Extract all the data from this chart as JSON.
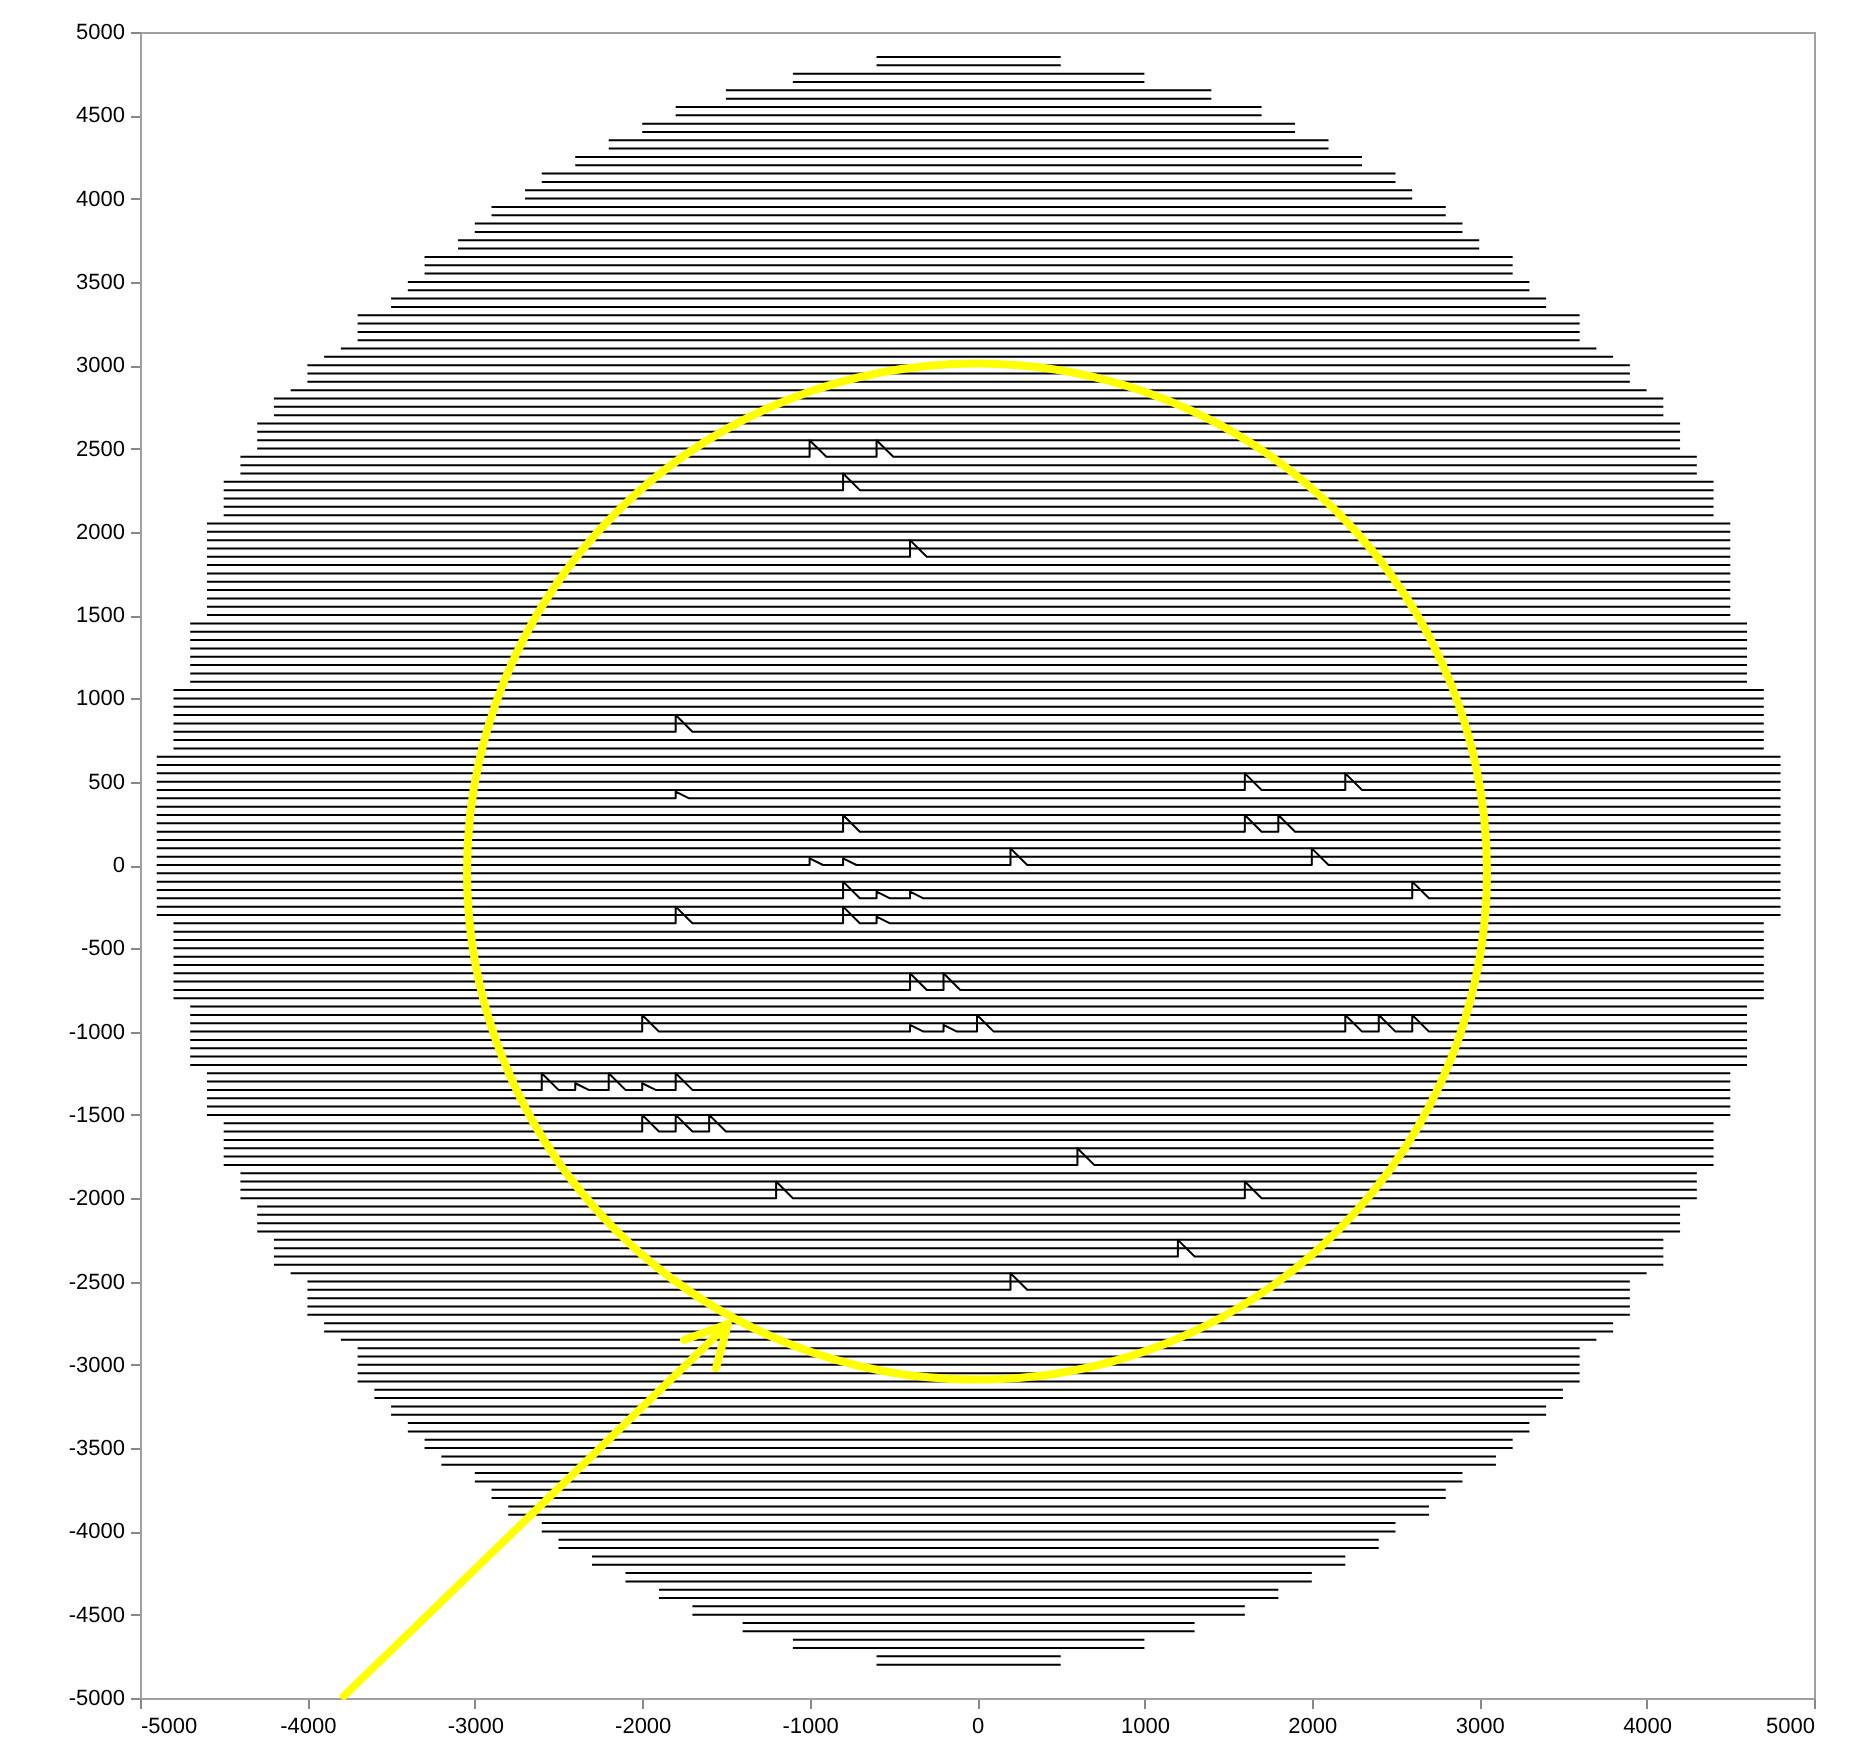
{
  "chart_data": {
    "type": "line",
    "xlim": [
      -5000,
      5000
    ],
    "ylim": [
      -5000,
      5000
    ],
    "xticks": [
      -5000,
      -4000,
      -3000,
      -2000,
      -1000,
      0,
      1000,
      2000,
      3000,
      4000,
      5000
    ],
    "yticks": [
      -5000,
      -4500,
      -4000,
      -3500,
      -3000,
      -2500,
      -2000,
      -1500,
      -1000,
      -500,
      0,
      500,
      1000,
      1500,
      2000,
      2500,
      3000,
      3500,
      4000,
      4500,
      5000
    ],
    "grid": false,
    "series": [
      {
        "color": "#000000",
        "x": [
          -600,
          500
        ],
        "values": [
          4850,
          4850
        ]
      },
      {
        "color": "#000000",
        "x": [
          -600,
          500
        ],
        "values": [
          4800,
          4800
        ]
      },
      {
        "color": "#000000",
        "x": [
          -1100,
          1000
        ],
        "values": [
          4750,
          4750
        ]
      },
      {
        "color": "#000000",
        "x": [
          -1100,
          1000
        ],
        "values": [
          4700,
          4700
        ]
      },
      {
        "color": "#000000",
        "x": [
          -1500,
          1400
        ],
        "values": [
          4650,
          4650
        ]
      },
      {
        "color": "#000000",
        "x": [
          -1500,
          1400
        ],
        "values": [
          4600,
          4600
        ]
      },
      {
        "color": "#000000",
        "x": [
          -1800,
          1700
        ],
        "values": [
          4550,
          4550
        ]
      },
      {
        "color": "#000000",
        "x": [
          -1800,
          1700
        ],
        "values": [
          4500,
          4500
        ]
      },
      {
        "color": "#000000",
        "x": [
          -2000,
          1900
        ],
        "values": [
          4450,
          4450
        ]
      },
      {
        "color": "#000000",
        "x": [
          -2000,
          1900
        ],
        "values": [
          4400,
          4400
        ]
      },
      {
        "color": "#000000",
        "x": [
          -2200,
          2100
        ],
        "values": [
          4350,
          4350
        ]
      },
      {
        "color": "#000000",
        "x": [
          -2200,
          2100
        ],
        "values": [
          4300,
          4300
        ]
      },
      {
        "color": "#000000",
        "x": [
          -2400,
          2300
        ],
        "values": [
          4250,
          4250
        ]
      },
      {
        "color": "#000000",
        "x": [
          -2400,
          2300
        ],
        "values": [
          4200,
          4200
        ]
      },
      {
        "color": "#000000",
        "x": [
          -2600,
          2500
        ],
        "values": [
          4150,
          4150
        ]
      },
      {
        "color": "#000000",
        "x": [
          -2600,
          2500
        ],
        "values": [
          4100,
          4100
        ]
      },
      {
        "color": "#000000",
        "x": [
          -2700,
          2600
        ],
        "values": [
          4050,
          4050
        ]
      },
      {
        "color": "#000000",
        "x": [
          -2700,
          2600
        ],
        "values": [
          4000,
          4000
        ]
      },
      {
        "color": "#000000",
        "x": [
          -2900,
          2800
        ],
        "values": [
          3950,
          3950
        ]
      },
      {
        "color": "#000000",
        "x": [
          -2900,
          2800
        ],
        "values": [
          3900,
          3900
        ]
      },
      {
        "color": "#000000",
        "x": [
          -3000,
          2900
        ],
        "values": [
          3850,
          3850
        ]
      },
      {
        "color": "#000000",
        "x": [
          -3000,
          2900
        ],
        "values": [
          3800,
          3800
        ]
      },
      {
        "color": "#000000",
        "x": [
          -3100,
          3000
        ],
        "values": [
          3750,
          3750
        ]
      },
      {
        "color": "#000000",
        "x": [
          -3100,
          3000
        ],
        "values": [
          3700,
          3700
        ]
      },
      {
        "color": "#000000",
        "x": [
          -3300,
          3200
        ],
        "values": [
          3650,
          3650
        ]
      },
      {
        "color": "#000000",
        "x": [
          -3300,
          3200
        ],
        "values": [
          3600,
          3600
        ]
      },
      {
        "color": "#000000",
        "x": [
          -3300,
          3200
        ],
        "values": [
          3550,
          3550
        ]
      },
      {
        "color": "#000000",
        "x": [
          -3400,
          3300
        ],
        "values": [
          3500,
          3500
        ]
      },
      {
        "color": "#000000",
        "x": [
          -3400,
          3300
        ],
        "values": [
          3450,
          3450
        ]
      },
      {
        "color": "#000000",
        "x": [
          -3500,
          3400
        ],
        "values": [
          3400,
          3400
        ]
      },
      {
        "color": "#000000",
        "x": [
          -3500,
          3400
        ],
        "values": [
          3350,
          3350
        ]
      },
      {
        "color": "#000000",
        "x": [
          -3700,
          3600
        ],
        "values": [
          3300,
          3300
        ]
      },
      {
        "color": "#000000",
        "x": [
          -3700,
          3600
        ],
        "values": [
          3250,
          3250
        ]
      },
      {
        "color": "#000000",
        "x": [
          -3700,
          3600
        ],
        "values": [
          3200,
          3200
        ]
      },
      {
        "color": "#000000",
        "x": [
          -3700,
          3600
        ],
        "values": [
          3150,
          3150
        ]
      },
      {
        "color": "#000000",
        "x": [
          -3800,
          3700
        ],
        "values": [
          3100,
          3100
        ]
      },
      {
        "color": "#000000",
        "x": [
          -3900,
          3800
        ],
        "values": [
          3050,
          3050
        ]
      },
      {
        "color": "#000000",
        "x": [
          -4000,
          3900
        ],
        "values": [
          3000,
          3000
        ]
      },
      {
        "color": "#000000",
        "x": [
          -4000,
          3900
        ],
        "values": [
          2950,
          2950
        ]
      },
      {
        "color": "#000000",
        "x": [
          -4000,
          3900
        ],
        "values": [
          2900,
          2900
        ]
      },
      {
        "color": "#000000",
        "x": [
          -4100,
          4000
        ],
        "values": [
          2850,
          2850
        ]
      },
      {
        "color": "#000000",
        "x": [
          -4200,
          4100
        ],
        "values": [
          2800,
          2800
        ]
      },
      {
        "color": "#000000",
        "x": [
          -4200,
          4100
        ],
        "values": [
          2750,
          2750
        ]
      },
      {
        "color": "#000000",
        "x": [
          -4200,
          4100
        ],
        "values": [
          2700,
          2700
        ]
      },
      {
        "color": "#000000",
        "x": [
          -4300,
          4200
        ],
        "values": [
          2650,
          2650
        ]
      },
      {
        "color": "#000000",
        "x": [
          -4300,
          4200
        ],
        "values": [
          2600,
          2600
        ]
      },
      {
        "color": "#000000",
        "x": [
          -4300,
          4200
        ],
        "values": [
          2550,
          2550
        ]
      },
      {
        "color": "#000000",
        "x": [
          -4300,
          4200
        ],
        "values": [
          2500,
          2500
        ]
      },
      {
        "color": "#000000",
        "x": [
          -4400,
          -1000,
          -1000,
          -900,
          -600,
          -600,
          -500,
          4300
        ],
        "values": [
          2450,
          2450,
          2550,
          2450,
          2450,
          2550,
          2450,
          2450
        ]
      },
      {
        "color": "#000000",
        "x": [
          -4400,
          4300
        ],
        "values": [
          2400,
          2400
        ]
      },
      {
        "color": "#000000",
        "x": [
          -4400,
          4300
        ],
        "values": [
          2350,
          2350
        ]
      },
      {
        "color": "#000000",
        "x": [
          -4500,
          4400
        ],
        "values": [
          2300,
          2300
        ]
      },
      {
        "color": "#000000",
        "x": [
          -4500,
          -800,
          -800,
          -700,
          4400
        ],
        "values": [
          2250,
          2250,
          2350,
          2250,
          2250
        ]
      },
      {
        "color": "#000000",
        "x": [
          -4500,
          4400
        ],
        "values": [
          2200,
          2200
        ]
      },
      {
        "color": "#000000",
        "x": [
          -4500,
          4400
        ],
        "values": [
          2150,
          2150
        ]
      },
      {
        "color": "#000000",
        "x": [
          -4500,
          4400
        ],
        "values": [
          2100,
          2100
        ]
      },
      {
        "color": "#000000",
        "x": [
          -4600,
          4500
        ],
        "values": [
          2050,
          2050
        ]
      },
      {
        "color": "#000000",
        "x": [
          -4600,
          4500
        ],
        "values": [
          2000,
          2000
        ]
      },
      {
        "color": "#000000",
        "x": [
          -4600,
          4500
        ],
        "values": [
          1950,
          1950
        ]
      },
      {
        "color": "#000000",
        "x": [
          -4600,
          4500
        ],
        "values": [
          1900,
          1900
        ]
      },
      {
        "color": "#000000",
        "x": [
          -4600,
          -400,
          -400,
          -300,
          4500
        ],
        "values": [
          1850,
          1850,
          1950,
          1850,
          1850
        ]
      },
      {
        "color": "#000000",
        "x": [
          -4600,
          4500
        ],
        "values": [
          1800,
          1800
        ]
      },
      {
        "color": "#000000",
        "x": [
          -4600,
          4500
        ],
        "values": [
          1750,
          1750
        ]
      },
      {
        "color": "#000000",
        "x": [
          -4600,
          4500
        ],
        "values": [
          1700,
          1700
        ]
      },
      {
        "color": "#000000",
        "x": [
          -4600,
          4500
        ],
        "values": [
          1650,
          1650
        ]
      },
      {
        "color": "#000000",
        "x": [
          -4600,
          4500
        ],
        "values": [
          1600,
          1600
        ]
      },
      {
        "color": "#000000",
        "x": [
          -4600,
          4500
        ],
        "values": [
          1550,
          1550
        ]
      },
      {
        "color": "#000000",
        "x": [
          -4600,
          4500
        ],
        "values": [
          1500,
          1500
        ]
      },
      {
        "color": "#000000",
        "x": [
          -4700,
          4600
        ],
        "values": [
          1450,
          1450
        ]
      },
      {
        "color": "#000000",
        "x": [
          -4700,
          4600
        ],
        "values": [
          1400,
          1400
        ]
      },
      {
        "color": "#000000",
        "x": [
          -4700,
          4600
        ],
        "values": [
          1350,
          1350
        ]
      },
      {
        "color": "#000000",
        "x": [
          -4700,
          4600
        ],
        "values": [
          1300,
          1300
        ]
      },
      {
        "color": "#000000",
        "x": [
          -4700,
          4600
        ],
        "values": [
          1250,
          1250
        ]
      },
      {
        "color": "#000000",
        "x": [
          -4700,
          4600
        ],
        "values": [
          1200,
          1200
        ]
      },
      {
        "color": "#000000",
        "x": [
          -4700,
          4600
        ],
        "values": [
          1150,
          1150
        ]
      },
      {
        "color": "#000000",
        "x": [
          -4700,
          4600
        ],
        "values": [
          1100,
          1100
        ]
      },
      {
        "color": "#000000",
        "x": [
          -4800,
          4700
        ],
        "values": [
          1050,
          1050
        ]
      },
      {
        "color": "#000000",
        "x": [
          -4800,
          4700
        ],
        "values": [
          1000,
          1000
        ]
      },
      {
        "color": "#000000",
        "x": [
          -4800,
          4700
        ],
        "values": [
          950,
          950
        ]
      },
      {
        "color": "#000000",
        "x": [
          -4800,
          4700
        ],
        "values": [
          900,
          900
        ]
      },
      {
        "color": "#000000",
        "x": [
          -4800,
          4700
        ],
        "values": [
          850,
          850
        ]
      },
      {
        "color": "#000000",
        "x": [
          -4800,
          -1800,
          -1800,
          -1700,
          4700
        ],
        "values": [
          800,
          800,
          900,
          800,
          800
        ]
      },
      {
        "color": "#000000",
        "x": [
          -4800,
          4700
        ],
        "values": [
          750,
          750
        ]
      },
      {
        "color": "#000000",
        "x": [
          -4800,
          4700
        ],
        "values": [
          700,
          700
        ]
      },
      {
        "color": "#000000",
        "x": [
          -4900,
          4800
        ],
        "values": [
          650,
          650
        ]
      },
      {
        "color": "#000000",
        "x": [
          -4900,
          4800
        ],
        "values": [
          600,
          600
        ]
      },
      {
        "color": "#000000",
        "x": [
          -4900,
          4800
        ],
        "values": [
          550,
          550
        ]
      },
      {
        "color": "#000000",
        "x": [
          -4900,
          4800
        ],
        "values": [
          500,
          500
        ]
      },
      {
        "color": "#000000",
        "x": [
          -4900,
          1600,
          1600,
          1700,
          2200,
          2200,
          2300,
          4800
        ],
        "values": [
          450,
          450,
          550,
          450,
          450,
          550,
          450,
          450
        ]
      },
      {
        "color": "#000000",
        "x": [
          -4900,
          -1800,
          -1800,
          -1720,
          4800
        ],
        "values": [
          400,
          400,
          440,
          400,
          400
        ]
      },
      {
        "color": "#000000",
        "x": [
          -4900,
          4800
        ],
        "values": [
          350,
          350
        ]
      },
      {
        "color": "#000000",
        "x": [
          -4900,
          4800
        ],
        "values": [
          300,
          300
        ]
      },
      {
        "color": "#000000",
        "x": [
          -4900,
          4800
        ],
        "values": [
          250,
          250
        ]
      },
      {
        "color": "#000000",
        "x": [
          -4900,
          -800,
          -800,
          -700,
          1600,
          1600,
          1700,
          1800,
          1800,
          1900,
          4800
        ],
        "values": [
          200,
          200,
          300,
          200,
          200,
          300,
          200,
          200,
          300,
          200,
          200
        ]
      },
      {
        "color": "#000000",
        "x": [
          -4900,
          4800
        ],
        "values": [
          150,
          150
        ]
      },
      {
        "color": "#000000",
        "x": [
          -4900,
          4800
        ],
        "values": [
          100,
          100
        ]
      },
      {
        "color": "#000000",
        "x": [
          -4900,
          4800
        ],
        "values": [
          50,
          50
        ]
      },
      {
        "color": "#000000",
        "x": [
          -4900,
          -1000,
          -1000,
          -920,
          -800,
          -800,
          -720,
          200,
          200,
          300,
          2000,
          2000,
          2100,
          4800
        ],
        "values": [
          0,
          0,
          40,
          0,
          0,
          40,
          0,
          0,
          100,
          0,
          0,
          100,
          0,
          0
        ]
      },
      {
        "color": "#000000",
        "x": [
          -4900,
          4800
        ],
        "values": [
          -50,
          -50
        ]
      },
      {
        "color": "#000000",
        "x": [
          -4900,
          4800
        ],
        "values": [
          -100,
          -100
        ]
      },
      {
        "color": "#000000",
        "x": [
          -4900,
          4800
        ],
        "values": [
          -150,
          -150
        ]
      },
      {
        "color": "#000000",
        "x": [
          -4900,
          -800,
          -800,
          -700,
          -600,
          -600,
          -520,
          -400,
          -400,
          -320,
          2600,
          2600,
          2700,
          4800
        ],
        "values": [
          -200,
          -200,
          -100,
          -200,
          -200,
          -160,
          -200,
          -200,
          -160,
          -200,
          -200,
          -100,
          -200,
          -200
        ]
      },
      {
        "color": "#000000",
        "x": [
          -4900,
          4800
        ],
        "values": [
          -250,
          -250
        ]
      },
      {
        "color": "#000000",
        "x": [
          -4900,
          4800
        ],
        "values": [
          -300,
          -300
        ]
      },
      {
        "color": "#000000",
        "x": [
          -4800,
          -1800,
          -1800,
          -1700,
          -800,
          -800,
          -700,
          -600,
          -600,
          -520,
          4700
        ],
        "values": [
          -350,
          -350,
          -250,
          -350,
          -350,
          -250,
          -350,
          -350,
          -310,
          -350,
          -350
        ]
      },
      {
        "color": "#000000",
        "x": [
          -4800,
          4700
        ],
        "values": [
          -400,
          -400
        ]
      },
      {
        "color": "#000000",
        "x": [
          -4800,
          4700
        ],
        "values": [
          -450,
          -450
        ]
      },
      {
        "color": "#000000",
        "x": [
          -4800,
          4700
        ],
        "values": [
          -500,
          -500
        ]
      },
      {
        "color": "#000000",
        "x": [
          -4800,
          4700
        ],
        "values": [
          -550,
          -550
        ]
      },
      {
        "color": "#000000",
        "x": [
          -4800,
          4700
        ],
        "values": [
          -600,
          -600
        ]
      },
      {
        "color": "#000000",
        "x": [
          -4800,
          4700
        ],
        "values": [
          -650,
          -650
        ]
      },
      {
        "color": "#000000",
        "x": [
          -4800,
          4700
        ],
        "values": [
          -700,
          -700
        ]
      },
      {
        "color": "#000000",
        "x": [
          -4800,
          -400,
          -400,
          -300,
          -200,
          -200,
          -100,
          4700
        ],
        "values": [
          -750,
          -750,
          -650,
          -750,
          -750,
          -650,
          -750,
          -750
        ]
      },
      {
        "color": "#000000",
        "x": [
          -4800,
          4700
        ],
        "values": [
          -800,
          -800
        ]
      },
      {
        "color": "#000000",
        "x": [
          -4700,
          4600
        ],
        "values": [
          -850,
          -850
        ]
      },
      {
        "color": "#000000",
        "x": [
          -4700,
          4600
        ],
        "values": [
          -900,
          -900
        ]
      },
      {
        "color": "#000000",
        "x": [
          -4700,
          4600
        ],
        "values": [
          -950,
          -950
        ]
      },
      {
        "color": "#000000",
        "x": [
          -4700,
          -2000,
          -2000,
          -1900,
          -400,
          -400,
          -320,
          -200,
          -200,
          -120,
          0,
          0,
          100,
          2200,
          2200,
          2300,
          2400,
          2400,
          2500,
          2600,
          2600,
          2700,
          4600
        ],
        "values": [
          -1000,
          -1000,
          -900,
          -1000,
          -1000,
          -960,
          -1000,
          -1000,
          -960,
          -1000,
          -1000,
          -900,
          -1000,
          -1000,
          -900,
          -1000,
          -1000,
          -900,
          -1000,
          -1000,
          -900,
          -1000,
          -1000
        ]
      },
      {
        "color": "#000000",
        "x": [
          -4700,
          4600
        ],
        "values": [
          -1050,
          -1050
        ]
      },
      {
        "color": "#000000",
        "x": [
          -4700,
          4600
        ],
        "values": [
          -1100,
          -1100
        ]
      },
      {
        "color": "#000000",
        "x": [
          -4700,
          4600
        ],
        "values": [
          -1150,
          -1150
        ]
      },
      {
        "color": "#000000",
        "x": [
          -4700,
          4600
        ],
        "values": [
          -1200,
          -1200
        ]
      },
      {
        "color": "#000000",
        "x": [
          -4600,
          4500
        ],
        "values": [
          -1250,
          -1250
        ]
      },
      {
        "color": "#000000",
        "x": [
          -4600,
          4500
        ],
        "values": [
          -1300,
          -1300
        ]
      },
      {
        "color": "#000000",
        "x": [
          -4600,
          -2600,
          -2600,
          -2500,
          -2400,
          -2400,
          -2320,
          -2200,
          -2200,
          -2100,
          -2000,
          -2000,
          -1920,
          -1800,
          -1800,
          -1700,
          4500
        ],
        "values": [
          -1350,
          -1350,
          -1250,
          -1350,
          -1350,
          -1310,
          -1350,
          -1350,
          -1250,
          -1350,
          -1350,
          -1310,
          -1350,
          -1350,
          -1250,
          -1350,
          -1350
        ]
      },
      {
        "color": "#000000",
        "x": [
          -4600,
          4500
        ],
        "values": [
          -1400,
          -1400
        ]
      },
      {
        "color": "#000000",
        "x": [
          -4600,
          4500
        ],
        "values": [
          -1450,
          -1450
        ]
      },
      {
        "color": "#000000",
        "x": [
          -4600,
          4500
        ],
        "values": [
          -1500,
          -1500
        ]
      },
      {
        "color": "#000000",
        "x": [
          -4500,
          4400
        ],
        "values": [
          -1550,
          -1550
        ]
      },
      {
        "color": "#000000",
        "x": [
          -4500,
          -2000,
          -2000,
          -1900,
          -1800,
          -1800,
          -1700,
          -1600,
          -1600,
          -1500,
          4400
        ],
        "values": [
          -1600,
          -1600,
          -1500,
          -1600,
          -1600,
          -1500,
          -1600,
          -1600,
          -1500,
          -1600,
          -1600
        ]
      },
      {
        "color": "#000000",
        "x": [
          -4500,
          4400
        ],
        "values": [
          -1650,
          -1650
        ]
      },
      {
        "color": "#000000",
        "x": [
          -4500,
          4400
        ],
        "values": [
          -1700,
          -1700
        ]
      },
      {
        "color": "#000000",
        "x": [
          -4500,
          4400
        ],
        "values": [
          -1750,
          -1750
        ]
      },
      {
        "color": "#000000",
        "x": [
          -4500,
          600,
          600,
          700,
          4400
        ],
        "values": [
          -1800,
          -1800,
          -1700,
          -1800,
          -1800
        ]
      },
      {
        "color": "#000000",
        "x": [
          -4400,
          4300
        ],
        "values": [
          -1850,
          -1850
        ]
      },
      {
        "color": "#000000",
        "x": [
          -4400,
          4300
        ],
        "values": [
          -1900,
          -1900
        ]
      },
      {
        "color": "#000000",
        "x": [
          -4400,
          4300
        ],
        "values": [
          -1950,
          -1950
        ]
      },
      {
        "color": "#000000",
        "x": [
          -4400,
          -1200,
          -1200,
          -1100,
          1600,
          1600,
          1700,
          4300
        ],
        "values": [
          -2000,
          -2000,
          -1900,
          -2000,
          -2000,
          -1900,
          -2000,
          -2000
        ]
      },
      {
        "color": "#000000",
        "x": [
          -4300,
          4200
        ],
        "values": [
          -2050,
          -2050
        ]
      },
      {
        "color": "#000000",
        "x": [
          -4300,
          4200
        ],
        "values": [
          -2100,
          -2100
        ]
      },
      {
        "color": "#000000",
        "x": [
          -4300,
          4200
        ],
        "values": [
          -2150,
          -2150
        ]
      },
      {
        "color": "#000000",
        "x": [
          -4300,
          4200
        ],
        "values": [
          -2200,
          -2200
        ]
      },
      {
        "color": "#000000",
        "x": [
          -4200,
          4100
        ],
        "values": [
          -2250,
          -2250
        ]
      },
      {
        "color": "#000000",
        "x": [
          -4200,
          4100
        ],
        "values": [
          -2300,
          -2300
        ]
      },
      {
        "color": "#000000",
        "x": [
          -4200,
          1200,
          1200,
          1300,
          4100
        ],
        "values": [
          -2350,
          -2350,
          -2250,
          -2350,
          -2350
        ]
      },
      {
        "color": "#000000",
        "x": [
          -4200,
          4100
        ],
        "values": [
          -2400,
          -2400
        ]
      },
      {
        "color": "#000000",
        "x": [
          -4100,
          4000
        ],
        "values": [
          -2450,
          -2450
        ]
      },
      {
        "color": "#000000",
        "x": [
          -4000,
          3900
        ],
        "values": [
          -2500,
          -2500
        ]
      },
      {
        "color": "#000000",
        "x": [
          -4000,
          200,
          200,
          300,
          3900
        ],
        "values": [
          -2550,
          -2550,
          -2450,
          -2550,
          -2550
        ]
      },
      {
        "color": "#000000",
        "x": [
          -4000,
          3900
        ],
        "values": [
          -2600,
          -2600
        ]
      },
      {
        "color": "#000000",
        "x": [
          -4000,
          3900
        ],
        "values": [
          -2650,
          -2650
        ]
      },
      {
        "color": "#000000",
        "x": [
          -4000,
          3900
        ],
        "values": [
          -2700,
          -2700
        ]
      },
      {
        "color": "#000000",
        "x": [
          -3900,
          3800
        ],
        "values": [
          -2750,
          -2750
        ]
      },
      {
        "color": "#000000",
        "x": [
          -3900,
          3800
        ],
        "values": [
          -2800,
          -2800
        ]
      },
      {
        "color": "#000000",
        "x": [
          -3800,
          3700
        ],
        "values": [
          -2850,
          -2850
        ]
      },
      {
        "color": "#000000",
        "x": [
          -3700,
          3600
        ],
        "values": [
          -2900,
          -2900
        ]
      },
      {
        "color": "#000000",
        "x": [
          -3700,
          3600
        ],
        "values": [
          -2950,
          -2950
        ]
      },
      {
        "color": "#000000",
        "x": [
          -3700,
          3600
        ],
        "values": [
          -3000,
          -3000
        ]
      },
      {
        "color": "#000000",
        "x": [
          -3700,
          3600
        ],
        "values": [
          -3050,
          -3050
        ]
      },
      {
        "color": "#000000",
        "x": [
          -3700,
          3600
        ],
        "values": [
          -3100,
          -3100
        ]
      },
      {
        "color": "#000000",
        "x": [
          -3600,
          3500
        ],
        "values": [
          -3150,
          -3150
        ]
      },
      {
        "color": "#000000",
        "x": [
          -3600,
          3500
        ],
        "values": [
          -3200,
          -3200
        ]
      },
      {
        "color": "#000000",
        "x": [
          -3500,
          3400
        ],
        "values": [
          -3250,
          -3250
        ]
      },
      {
        "color": "#000000",
        "x": [
          -3500,
          3400
        ],
        "values": [
          -3300,
          -3300
        ]
      },
      {
        "color": "#000000",
        "x": [
          -3400,
          3300
        ],
        "values": [
          -3350,
          -3350
        ]
      },
      {
        "color": "#000000",
        "x": [
          -3400,
          3300
        ],
        "values": [
          -3400,
          -3400
        ]
      },
      {
        "color": "#000000",
        "x": [
          -3300,
          3200
        ],
        "values": [
          -3450,
          -3450
        ]
      },
      {
        "color": "#000000",
        "x": [
          -3300,
          3200
        ],
        "values": [
          -3500,
          -3500
        ]
      },
      {
        "color": "#000000",
        "x": [
          -3200,
          3100
        ],
        "values": [
          -3550,
          -3550
        ]
      },
      {
        "color": "#000000",
        "x": [
          -3200,
          3100
        ],
        "values": [
          -3600,
          -3600
        ]
      },
      {
        "color": "#000000",
        "x": [
          -3000,
          2900
        ],
        "values": [
          -3650,
          -3650
        ]
      },
      {
        "color": "#000000",
        "x": [
          -3000,
          2900
        ],
        "values": [
          -3700,
          -3700
        ]
      },
      {
        "color": "#000000",
        "x": [
          -2900,
          2800
        ],
        "values": [
          -3750,
          -3750
        ]
      },
      {
        "color": "#000000",
        "x": [
          -2900,
          2800
        ],
        "values": [
          -3800,
          -3800
        ]
      },
      {
        "color": "#000000",
        "x": [
          -2800,
          2700
        ],
        "values": [
          -3850,
          -3850
        ]
      },
      {
        "color": "#000000",
        "x": [
          -2800,
          2700
        ],
        "values": [
          -3900,
          -3900
        ]
      },
      {
        "color": "#000000",
        "x": [
          -2600,
          2500
        ],
        "values": [
          -3950,
          -3950
        ]
      },
      {
        "color": "#000000",
        "x": [
          -2600,
          2500
        ],
        "values": [
          -4000,
          -4000
        ]
      },
      {
        "color": "#000000",
        "x": [
          -2500,
          2400
        ],
        "values": [
          -4050,
          -4050
        ]
      },
      {
        "color": "#000000",
        "x": [
          -2500,
          2400
        ],
        "values": [
          -4100,
          -4100
        ]
      },
      {
        "color": "#000000",
        "x": [
          -2300,
          2200
        ],
        "values": [
          -4150,
          -4150
        ]
      },
      {
        "color": "#000000",
        "x": [
          -2300,
          2200
        ],
        "values": [
          -4200,
          -4200
        ]
      },
      {
        "color": "#000000",
        "x": [
          -2100,
          2000
        ],
        "values": [
          -4250,
          -4250
        ]
      },
      {
        "color": "#000000",
        "x": [
          -2100,
          2000
        ],
        "values": [
          -4300,
          -4300
        ]
      },
      {
        "color": "#000000",
        "x": [
          -1900,
          1800
        ],
        "values": [
          -4350,
          -4350
        ]
      },
      {
        "color": "#000000",
        "x": [
          -1900,
          1800
        ],
        "values": [
          -4400,
          -4400
        ]
      },
      {
        "color": "#000000",
        "x": [
          -1700,
          1600
        ],
        "values": [
          -4450,
          -4450
        ]
      },
      {
        "color": "#000000",
        "x": [
          -1700,
          1600
        ],
        "values": [
          -4500,
          -4500
        ]
      },
      {
        "color": "#000000",
        "x": [
          -1400,
          1300
        ],
        "values": [
          -4550,
          -4550
        ]
      },
      {
        "color": "#000000",
        "x": [
          -1400,
          1300
        ],
        "values": [
          -4600,
          -4600
        ]
      },
      {
        "color": "#000000",
        "x": [
          -1100,
          1000
        ],
        "values": [
          -4650,
          -4650
        ]
      },
      {
        "color": "#000000",
        "x": [
          -1100,
          1000
        ],
        "values": [
          -4700,
          -4700
        ]
      },
      {
        "color": "#000000",
        "x": [
          -600,
          500
        ],
        "values": [
          -4750,
          -4750
        ]
      },
      {
        "color": "#000000",
        "x": [
          -600,
          500
        ],
        "values": [
          -4800,
          -4800
        ]
      }
    ]
  }
}
